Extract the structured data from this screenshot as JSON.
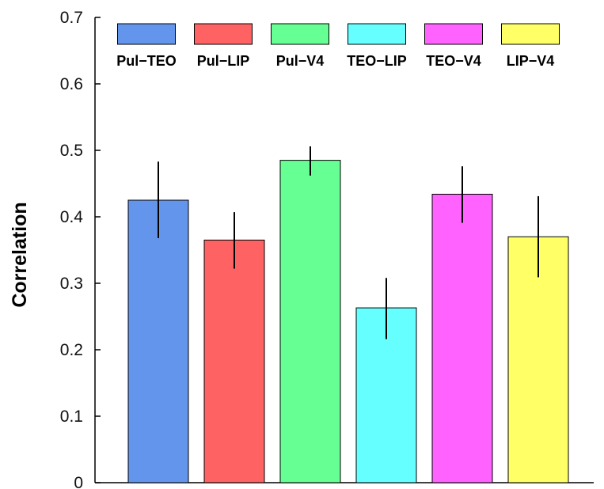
{
  "chart_data": {
    "type": "bar",
    "title": "",
    "xlabel": "",
    "ylabel": "Correlation",
    "ylim": [
      0,
      0.7
    ],
    "yticks": [
      "0",
      "0.1",
      "0.2",
      "0.3",
      "0.4",
      "0.5",
      "0.6",
      "0.7"
    ],
    "grid": false,
    "legend_position": "top",
    "categories": [
      "Pul−TEO",
      "Pul−LIP",
      "Pul−V4",
      "TEO−LIP",
      "TEO−V4",
      "LIP−V4"
    ],
    "values": [
      0.425,
      0.365,
      0.485,
      0.263,
      0.434,
      0.37
    ],
    "error_low": [
      0.368,
      0.322,
      0.462,
      0.216,
      0.391,
      0.309
    ],
    "error_high": [
      0.483,
      0.407,
      0.506,
      0.308,
      0.476,
      0.431
    ],
    "colors": [
      "#6495ED",
      "#FF6262",
      "#66FF93",
      "#66FFFF",
      "#FF62FF",
      "#FFFF66"
    ]
  }
}
